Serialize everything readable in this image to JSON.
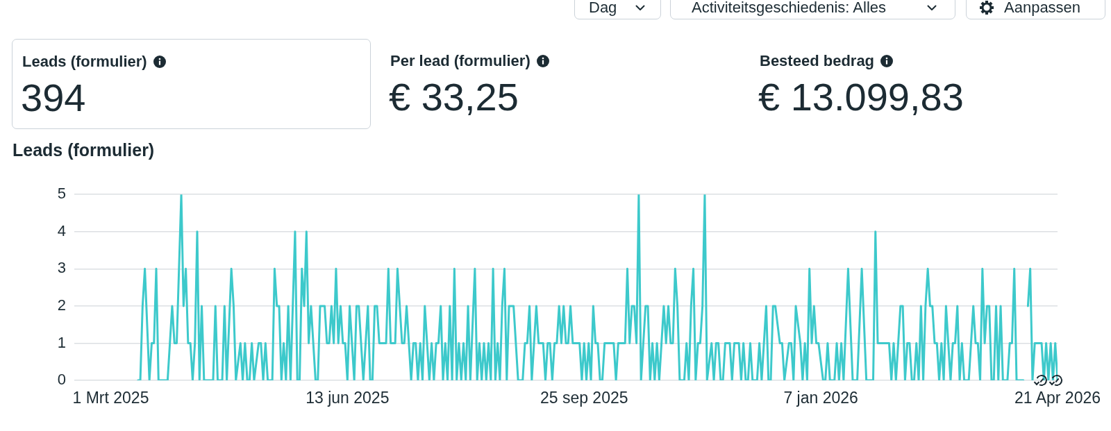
{
  "chart_data": [
    {
      "type": "other",
      "annotations": [
        "Dag",
        "Activiteitsgeschiedenis: Alles",
        "Aanpassen"
      ]
    },
    {
      "type": "other",
      "title": "Leads (formulier)",
      "annotations": [
        "394"
      ]
    },
    {
      "type": "other",
      "title": "Per lead (formulier)",
      "annotations": [
        "€ 33,25"
      ]
    },
    {
      "type": "other",
      "title": "Besteed bedrag",
      "annotations": [
        "€ 13.099,83"
      ]
    },
    {
      "type": "line",
      "title": "Leads (formulier)",
      "color": "#3dc9cb",
      "x": [
        "2025-03-13",
        "2025-03-14",
        "2025-03-15",
        "2025-03-16",
        "2025-03-18",
        "2025-03-19",
        "2025-03-20",
        "2025-03-21",
        "2025-03-22",
        "2025-03-26",
        "2025-03-28",
        "2025-03-29",
        "2025-03-30",
        "2025-04-01",
        "2025-04-02",
        "2025-04-03",
        "2025-04-04",
        "2025-04-05",
        "2025-04-06",
        "2025-04-07",
        "2025-04-08",
        "2025-04-09",
        "2025-04-10",
        "2025-04-11",
        "2025-04-15",
        "2025-04-16",
        "2025-04-17",
        "2025-04-19",
        "2025-04-20",
        "2025-04-21",
        "2025-04-23",
        "2025-04-24",
        "2025-04-25",
        "2025-04-27",
        "2025-04-28",
        "2025-04-29",
        "2025-04-30",
        "2025-05-01",
        "2025-05-02",
        "2025-05-03",
        "2025-05-05",
        "2025-05-06",
        "2025-05-07",
        "2025-05-08",
        "2025-05-09",
        "2025-05-11",
        "2025-05-12",
        "2025-05-13",
        "2025-05-14",
        "2025-05-15",
        "2025-05-16",
        "2025-05-17",
        "2025-05-18",
        "2025-05-19",
        "2025-05-21",
        "2025-05-22",
        "2025-05-23",
        "2025-05-24",
        "2025-05-25",
        "2025-05-26",
        "2025-05-27",
        "2025-05-28",
        "2025-05-30",
        "2025-05-31",
        "2025-06-01",
        "2025-06-03",
        "2025-06-04",
        "2025-06-05",
        "2025-06-06",
        "2025-06-07",
        "2025-06-08",
        "2025-06-09",
        "2025-06-10",
        "2025-06-11",
        "2025-06-12",
        "2025-06-13",
        "2025-06-14",
        "2025-06-16",
        "2025-06-17",
        "2025-06-18",
        "2025-06-20",
        "2025-06-22",
        "2025-06-23",
        "2025-06-24",
        "2025-06-25",
        "2025-06-26",
        "2025-06-27",
        "2025-06-30",
        "2025-07-01",
        "2025-07-02",
        "2025-07-04",
        "2025-07-05",
        "2025-07-07",
        "2025-07-08",
        "2025-07-09",
        "2025-07-11",
        "2025-07-12",
        "2025-07-13",
        "2025-07-14",
        "2025-07-15",
        "2025-07-16",
        "2025-07-17",
        "2025-07-19",
        "2025-07-20",
        "2025-07-21",
        "2025-07-22",
        "2025-07-23",
        "2025-07-24",
        "2025-07-25",
        "2025-07-26",
        "2025-07-27",
        "2025-07-28",
        "2025-07-29",
        "2025-07-30",
        "2025-07-31",
        "2025-08-01",
        "2025-08-02",
        "2025-08-03",
        "2025-08-04",
        "2025-08-05",
        "2025-08-06",
        "2025-08-08",
        "2025-08-09",
        "2025-08-10",
        "2025-08-11",
        "2025-08-12",
        "2025-08-13",
        "2025-08-14",
        "2025-08-15",
        "2025-08-16",
        "2025-08-17",
        "2025-08-18",
        "2025-08-19",
        "2025-08-20",
        "2025-08-21",
        "2025-08-22",
        "2025-08-23",
        "2025-08-25",
        "2025-08-27",
        "2025-08-29",
        "2025-08-30",
        "2025-08-31",
        "2025-09-01",
        "2025-09-02",
        "2025-09-04",
        "2025-09-05",
        "2025-09-07",
        "2025-09-08",
        "2025-09-09",
        "2025-09-10",
        "2025-09-11",
        "2025-09-12",
        "2025-09-13",
        "2025-09-14",
        "2025-09-15",
        "2025-09-16",
        "2025-09-17",
        "2025-09-18",
        "2025-09-19",
        "2025-09-20",
        "2025-09-23",
        "2025-09-24",
        "2025-09-25",
        "2025-09-26",
        "2025-09-27",
        "2025-09-28",
        "2025-09-29",
        "2025-09-30",
        "2025-10-01",
        "2025-10-02",
        "2025-10-03",
        "2025-10-04",
        "2025-10-08",
        "2025-10-09",
        "2025-10-10",
        "2025-10-13",
        "2025-10-14",
        "2025-10-15",
        "2025-10-16",
        "2025-10-17",
        "2025-10-18",
        "2025-10-19",
        "2025-10-20",
        "2025-10-22",
        "2025-10-23",
        "2025-10-24",
        "2025-10-25",
        "2025-10-26",
        "2025-10-27",
        "2025-10-28",
        "2025-10-29",
        "2025-10-30",
        "2025-10-31",
        "2025-11-01",
        "2025-11-02",
        "2025-11-03",
        "2025-11-04",
        "2025-11-05",
        "2025-11-06",
        "2025-11-08",
        "2025-11-09",
        "2025-11-10",
        "2025-11-11",
        "2025-11-12",
        "2025-11-13",
        "2025-11-14",
        "2025-11-15",
        "2025-11-16",
        "2025-11-17",
        "2025-11-18",
        "2025-11-20",
        "2025-11-21",
        "2025-11-22",
        "2025-11-23",
        "2025-11-24",
        "2025-11-25",
        "2025-11-26",
        "2025-11-28",
        "2025-11-29",
        "2025-11-30",
        "2025-12-02",
        "2025-12-03",
        "2025-12-04",
        "2025-12-05",
        "2025-12-06",
        "2025-12-07",
        "2025-12-08",
        "2025-12-10",
        "2025-12-11",
        "2025-12-12",
        "2025-12-14",
        "2025-12-15",
        "2025-12-16",
        "2025-12-17",
        "2025-12-18",
        "2025-12-20",
        "2025-12-21",
        "2025-12-22",
        "2025-12-24",
        "2025-12-25",
        "2025-12-26",
        "2025-12-27",
        "2025-12-29",
        "2025-12-30",
        "2025-12-31",
        "2026-01-01",
        "2026-01-02",
        "2026-01-03",
        "2026-01-04",
        "2026-01-05",
        "2026-01-06",
        "2026-01-08",
        "2026-01-09",
        "2026-01-10",
        "2026-01-11",
        "2026-01-13",
        "2026-01-14",
        "2026-01-15",
        "2026-01-16",
        "2026-01-17",
        "2026-01-19",
        "2026-01-21",
        "2026-01-23",
        "2026-01-25",
        "2026-01-27",
        "2026-01-30",
        "2026-01-31",
        "2026-02-01",
        "2026-02-06",
        "2026-02-07",
        "2026-02-08",
        "2026-02-09",
        "2026-02-10",
        "2026-02-11",
        "2026-02-12",
        "2026-02-13",
        "2026-02-14",
        "2026-02-15",
        "2026-02-16",
        "2026-02-17",
        "2026-02-18",
        "2026-02-19",
        "2026-02-20",
        "2026-02-21",
        "2026-02-22",
        "2026-02-23",
        "2026-02-24",
        "2026-02-25",
        "2026-02-26",
        "2026-02-27",
        "2026-02-28",
        "2026-03-01",
        "2026-03-02",
        "2026-03-03",
        "2026-03-05",
        "2026-03-06",
        "2026-03-07",
        "2026-03-08",
        "2026-03-09",
        "2026-03-10",
        "2026-03-11",
        "2026-03-13",
        "2026-03-14",
        "2026-03-15",
        "2026-03-16",
        "2026-03-17",
        "2026-03-18",
        "2026-03-19",
        "2026-03-20",
        "2026-03-21",
        "2026-03-22",
        "2026-03-23",
        "2026-03-24",
        "2026-03-25",
        "2026-03-26",
        "2026-03-27",
        "2026-03-28",
        "2026-03-30",
        "2026-03-31",
        "2026-04-01",
        "2026-04-02",
        "2026-04-03",
        "2026-04-06",
        "2026-04-07",
        "2026-04-08",
        "2026-04-09",
        "2026-04-10",
        "2026-04-11",
        "2026-04-14",
        "2026-04-15",
        "2026-04-16",
        "2026-04-17",
        "2026-04-18",
        "2026-04-19",
        "2026-04-20",
        "2026-04-21"
      ],
      "values": [
        0,
        0,
        2,
        3,
        0,
        1,
        1,
        3,
        0,
        0,
        2,
        1,
        1,
        5,
        2,
        3,
        1,
        1,
        0,
        1,
        4,
        0,
        2,
        0,
        0,
        2,
        0,
        0,
        2,
        0,
        3,
        2,
        0,
        1,
        0,
        1,
        0,
        0,
        1,
        0,
        1,
        1,
        0,
        1,
        0,
        0,
        3,
        2,
        2,
        0,
        1,
        0,
        2,
        0,
        4,
        0,
        0,
        3,
        2,
        4,
        1,
        2,
        0,
        0,
        2,
        2,
        1,
        1,
        2,
        1,
        3,
        1,
        2,
        1,
        1,
        0,
        2,
        0,
        2,
        2,
        0,
        2,
        0,
        0,
        2,
        2,
        1,
        1,
        3,
        1,
        1,
        3,
        1,
        1,
        2,
        0,
        1,
        1,
        0,
        1,
        0,
        2,
        0,
        1,
        0,
        1,
        1,
        2,
        0,
        1,
        0,
        2,
        0,
        3,
        0,
        1,
        0,
        1,
        0,
        2,
        0,
        3,
        0,
        1,
        0,
        1,
        0,
        1,
        0,
        3,
        0,
        1,
        0,
        2,
        3,
        0,
        2,
        2,
        0,
        0,
        1,
        1,
        2,
        0,
        2,
        1,
        1,
        0,
        1,
        1,
        0,
        1,
        1,
        2,
        1,
        2,
        1,
        1,
        2,
        1,
        1,
        0,
        1,
        0,
        1,
        0,
        2,
        1,
        1,
        0,
        0,
        1,
        1,
        0,
        1,
        1,
        3,
        1,
        2,
        2,
        1,
        5,
        0,
        2,
        2,
        0,
        1,
        0,
        1,
        0,
        1,
        2,
        1,
        2,
        1,
        1,
        3,
        2,
        0,
        0,
        1,
        0,
        2,
        3,
        0,
        1,
        1,
        2,
        5,
        0,
        1,
        0,
        1,
        1,
        0,
        0,
        1,
        1,
        0,
        1,
        1,
        0,
        1,
        0,
        0,
        1,
        0,
        0,
        1,
        0,
        2,
        0,
        0,
        2,
        2,
        1,
        1,
        0,
        1,
        1,
        0,
        2,
        1,
        0,
        1,
        0,
        3,
        1,
        2,
        1,
        1,
        0,
        0,
        1,
        0,
        0,
        1,
        0,
        1,
        0,
        3,
        0,
        0,
        3,
        0,
        0,
        4,
        1,
        1,
        0,
        1,
        0,
        1,
        2,
        2,
        0,
        1,
        1,
        0,
        0,
        1,
        0,
        2,
        0,
        2,
        3,
        2,
        2,
        1,
        1,
        0,
        1,
        0,
        2,
        0,
        1,
        1,
        2,
        0,
        1,
        0,
        0,
        1,
        2,
        1,
        1,
        0,
        3,
        1,
        2,
        2,
        0,
        0,
        2,
        0,
        2,
        0,
        0,
        1,
        1,
        3,
        0,
        0,
        null,
        2,
        3,
        0,
        1,
        1,
        0,
        1,
        0,
        1,
        0,
        1,
        0
      ],
      "xlim": [
        "2025-02-13",
        "2026-04-21"
      ],
      "xticks": [
        {
          "value": "2025-03-01",
          "label": "1 Mrt 2025"
        },
        {
          "value": "2025-06-13",
          "label": "13 jun 2025"
        },
        {
          "value": "2025-09-25",
          "label": "25 sep 2025"
        },
        {
          "value": "2026-01-07",
          "label": "7 jan 2026"
        },
        {
          "value": "2026-04-21",
          "label": "21 Apr 2026"
        }
      ],
      "ylim": [
        0,
        5
      ],
      "yticks": [
        0,
        1,
        2,
        3,
        4,
        5
      ],
      "grid": "y"
    }
  ]
}
